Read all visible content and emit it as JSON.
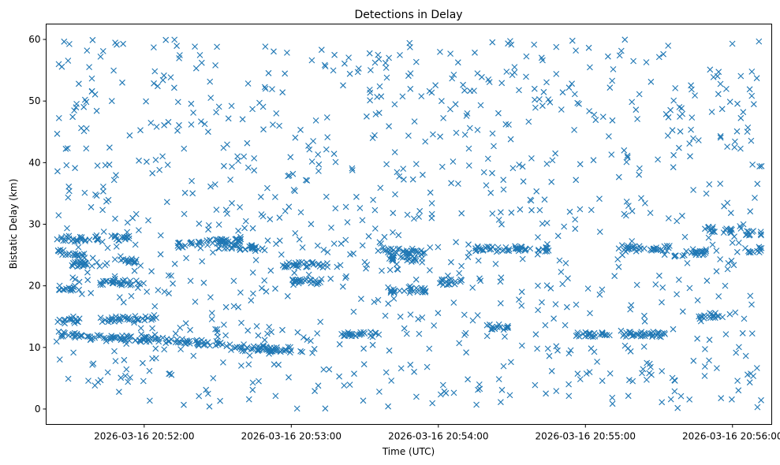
{
  "chart_data": {
    "type": "scatter",
    "title": "Detections in Delay",
    "xlabel": "Time (UTC)",
    "ylabel": "Bistatic Delay (km)",
    "marker": "x",
    "series_color": "#1f77b4",
    "grid": false,
    "legend": "none",
    "x_range": [
      "2026-03-16 20:51:20",
      "2026-03-16 20:56:16"
    ],
    "ylim": [
      -2.5,
      62.5
    ],
    "x_ticks": [
      "2026-03-16 20:52:00",
      "2026-03-16 20:53:00",
      "2026-03-16 20:54:00",
      "2026-03-16 20:55:00",
      "2026-03-16 20:56:00"
    ],
    "y_ticks": [
      0,
      10,
      20,
      30,
      40,
      50,
      60
    ],
    "start_time": "2026-03-16 20:51:24",
    "end_time": "2026-03-16 20:56:12",
    "point_count": 1500,
    "tracks": [
      {
        "from": "2026-03-16 20:51:24",
        "to": "2026-03-16 20:51:36",
        "y_from": 25.5,
        "y_to": 25.0
      },
      {
        "from": "2026-03-16 20:51:24",
        "to": "2026-03-16 20:51:36",
        "y_from": 27.8,
        "y_to": 27.5
      },
      {
        "from": "2026-03-16 20:51:24",
        "to": "2026-03-16 20:51:34",
        "y_from": 19.8,
        "y_to": 19.5
      },
      {
        "from": "2026-03-16 20:51:24",
        "to": "2026-03-16 20:51:34",
        "y_from": 14.3,
        "y_to": 14.3
      },
      {
        "from": "2026-03-16 20:51:24",
        "to": "2026-03-16 20:51:40",
        "y_from": 12.2,
        "y_to": 11.5
      },
      {
        "from": "2026-03-16 20:51:30",
        "to": "2026-03-16 20:51:45",
        "y_from": 23.5,
        "y_to": 23.5
      },
      {
        "from": "2026-03-16 20:51:40",
        "to": "2026-03-16 20:51:54",
        "y_from": 27.8,
        "y_to": 27.8
      },
      {
        "from": "2026-03-16 20:51:42",
        "to": "2026-03-16 20:52:00",
        "y_from": 20.6,
        "y_to": 20.5
      },
      {
        "from": "2026-03-16 20:51:42",
        "to": "2026-03-16 20:52:05",
        "y_from": 14.5,
        "y_to": 14.8
      },
      {
        "from": "2026-03-16 20:51:40",
        "to": "2026-03-16 20:52:35",
        "y_from": 11.8,
        "y_to": 10.5
      },
      {
        "from": "2026-03-16 20:51:50",
        "to": "2026-03-16 20:52:00",
        "y_from": 24.5,
        "y_to": 23.5
      },
      {
        "from": "2026-03-16 20:52:10",
        "to": "2026-03-16 20:52:40",
        "y_from": 26.5,
        "y_to": 27.5
      },
      {
        "from": "2026-03-16 20:52:30",
        "to": "2026-03-16 20:52:50",
        "y_from": 26.5,
        "y_to": 26.0
      },
      {
        "from": "2026-03-16 20:52:35",
        "to": "2026-03-16 20:52:50",
        "y_from": 9.6,
        "y_to": 9.8
      },
      {
        "from": "2026-03-16 20:52:50",
        "to": "2026-03-16 20:53:05",
        "y_from": 9.6,
        "y_to": 9.6
      },
      {
        "from": "2026-03-16 20:52:55",
        "to": "2026-03-16 20:53:15",
        "y_from": 23.4,
        "y_to": 23.4
      },
      {
        "from": "2026-03-16 20:53:00",
        "to": "2026-03-16 20:53:15",
        "y_from": 20.6,
        "y_to": 20.7
      },
      {
        "from": "2026-03-16 20:53:20",
        "to": "2026-03-16 20:53:35",
        "y_from": 12.1,
        "y_to": 12.1
      },
      {
        "from": "2026-03-16 20:53:35",
        "to": "2026-03-16 20:53:55",
        "y_from": 25.8,
        "y_to": 25.5
      },
      {
        "from": "2026-03-16 20:53:40",
        "to": "2026-03-16 20:53:55",
        "y_from": 19.2,
        "y_to": 19.3
      },
      {
        "from": "2026-03-16 20:53:40",
        "to": "2026-03-16 20:53:55",
        "y_from": 24.5,
        "y_to": 24.2
      },
      {
        "from": "2026-03-16 20:54:00",
        "to": "2026-03-16 20:54:10",
        "y_from": 20.6,
        "y_to": 20.6
      },
      {
        "from": "2026-03-16 20:54:15",
        "to": "2026-03-16 20:54:30",
        "y_from": 25.9,
        "y_to": 26.0
      },
      {
        "from": "2026-03-16 20:54:20",
        "to": "2026-03-16 20:54:30",
        "y_from": 13.3,
        "y_to": 13.3
      },
      {
        "from": "2026-03-16 20:54:30",
        "to": "2026-03-16 20:54:45",
        "y_from": 26.0,
        "y_to": 26.0
      },
      {
        "from": "2026-03-16 20:54:55",
        "to": "2026-03-16 20:55:10",
        "y_from": 12.2,
        "y_to": 12.0
      },
      {
        "from": "2026-03-16 20:55:15",
        "to": "2026-03-16 20:55:35",
        "y_from": 12.1,
        "y_to": 12.1
      },
      {
        "from": "2026-03-16 20:55:15",
        "to": "2026-03-16 20:55:35",
        "y_from": 26.0,
        "y_to": 26.1
      },
      {
        "from": "2026-03-16 20:55:35",
        "to": "2026-03-16 20:55:50",
        "y_from": 25.0,
        "y_to": 25.5
      },
      {
        "from": "2026-03-16 20:55:45",
        "to": "2026-03-16 20:55:55",
        "y_from": 15.0,
        "y_to": 15.3
      },
      {
        "from": "2026-03-16 20:55:50",
        "to": "2026-03-16 20:56:00",
        "y_from": 29.2,
        "y_to": 29.0
      },
      {
        "from": "2026-03-16 20:56:05",
        "to": "2026-03-16 20:56:12",
        "y_from": 28.6,
        "y_to": 28.6
      },
      {
        "from": "2026-03-16 20:56:05",
        "to": "2026-03-16 20:56:12",
        "y_from": 25.8,
        "y_to": 26.0
      }
    ]
  }
}
